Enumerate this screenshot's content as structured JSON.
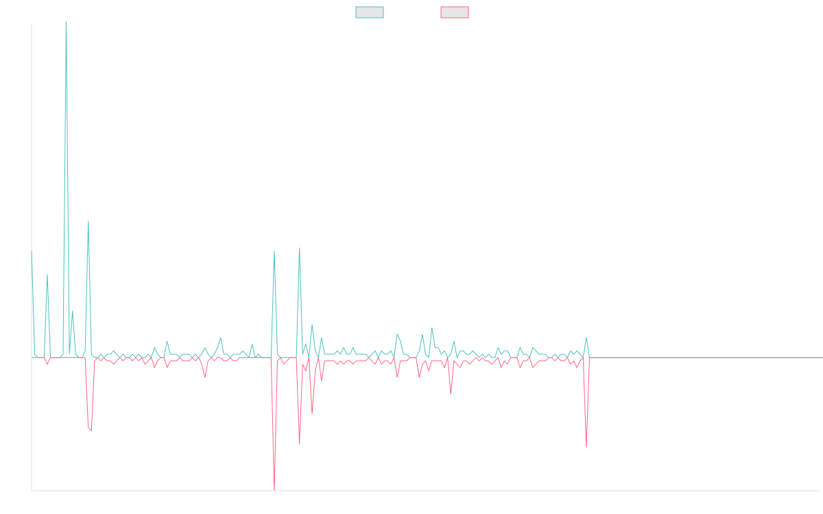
{
  "chart_data": {
    "type": "line",
    "title": "",
    "xlabel": "",
    "ylabel": "",
    "grid": false,
    "legend_position": "top-center",
    "ylim": [
      -200,
      500
    ],
    "xlim": [
      0,
      250
    ],
    "series": [
      {
        "color": "#4bc0c0",
        "fill": "#e6e6e6",
        "values": [
          160,
          5,
          0,
          0,
          0,
          125,
          0,
          0,
          0,
          0,
          5,
          505,
          5,
          70,
          5,
          0,
          0,
          10,
          205,
          5,
          0,
          0,
          5,
          0,
          5,
          5,
          10,
          5,
          0,
          5,
          0,
          0,
          5,
          0,
          5,
          0,
          0,
          5,
          0,
          15,
          5,
          0,
          0,
          25,
          5,
          5,
          5,
          0,
          5,
          5,
          5,
          0,
          5,
          0,
          5,
          15,
          5,
          0,
          5,
          15,
          30,
          5,
          5,
          0,
          5,
          5,
          5,
          10,
          5,
          0,
          20,
          0,
          5,
          0,
          0,
          0,
          0,
          160,
          5,
          0,
          0,
          0,
          0,
          0,
          0,
          165,
          5,
          20,
          0,
          50,
          10,
          0,
          30,
          5,
          5,
          5,
          5,
          10,
          5,
          15,
          5,
          5,
          15,
          5,
          5,
          5,
          5,
          0,
          5,
          10,
          0,
          10,
          5,
          5,
          10,
          0,
          35,
          25,
          5,
          5,
          0,
          0,
          0,
          10,
          35,
          5,
          0,
          45,
          15,
          15,
          5,
          10,
          0,
          5,
          25,
          0,
          10,
          10,
          5,
          5,
          10,
          5,
          0,
          5,
          0,
          5,
          0,
          0,
          15,
          5,
          10,
          10,
          0,
          0,
          0,
          15,
          5,
          5,
          0,
          15,
          10,
          5,
          5,
          5,
          0,
          0,
          5,
          0,
          5,
          5,
          0,
          10,
          5,
          10,
          5,
          0,
          30,
          0,
          0,
          0,
          0,
          0,
          0,
          0,
          0,
          0,
          0,
          0,
          0,
          0,
          0,
          0,
          0,
          0,
          0,
          0,
          0,
          0,
          0,
          0,
          0,
          0,
          0,
          0,
          0,
          0,
          0,
          0,
          0,
          0,
          0,
          0,
          0,
          0,
          0,
          0,
          0,
          0,
          0,
          0,
          0,
          0,
          0,
          0,
          0,
          0,
          0,
          0,
          0,
          0,
          0,
          0,
          0,
          0,
          0,
          0,
          0,
          0,
          0,
          0,
          0,
          0,
          0,
          0,
          0,
          0,
          0,
          0,
          0,
          0,
          0,
          0,
          0,
          0,
          0,
          0,
          0,
          0,
          0,
          0,
          0,
          0,
          0,
          0,
          0,
          0,
          0,
          0,
          0
        ]
      },
      {
        "color": "#ff6384",
        "fill": "#e6e6e6",
        "values": [
          0,
          0,
          0,
          0,
          0,
          -10,
          0,
          0,
          0,
          0,
          0,
          0,
          0,
          0,
          0,
          0,
          0,
          0,
          -105,
          -110,
          -5,
          0,
          -5,
          0,
          -5,
          -5,
          -10,
          -5,
          0,
          -5,
          0,
          0,
          -5,
          0,
          -5,
          0,
          -10,
          -5,
          0,
          -15,
          -5,
          0,
          0,
          -15,
          -5,
          -5,
          -5,
          0,
          -5,
          -5,
          -5,
          0,
          -5,
          0,
          -10,
          -30,
          -5,
          0,
          -5,
          0,
          0,
          -5,
          -5,
          0,
          -5,
          -5,
          0,
          0,
          0,
          0,
          0,
          0,
          0,
          0,
          0,
          0,
          0,
          -200,
          -5,
          0,
          -10,
          -5,
          0,
          0,
          0,
          -130,
          -10,
          -20,
          0,
          -85,
          -20,
          0,
          -35,
          -5,
          -5,
          -5,
          -5,
          -10,
          -5,
          -10,
          -5,
          -5,
          -10,
          -5,
          -5,
          -5,
          -5,
          0,
          -5,
          -10,
          0,
          -10,
          -5,
          -5,
          -10,
          0,
          -30,
          -5,
          -5,
          -5,
          0,
          0,
          0,
          -30,
          -10,
          -5,
          -20,
          -5,
          -5,
          -5,
          -5,
          -15,
          0,
          -55,
          -5,
          -10,
          -15,
          -5,
          -5,
          -10,
          -5,
          0,
          -5,
          0,
          -5,
          -5,
          -10,
          -5,
          0,
          -15,
          -5,
          -10,
          0,
          0,
          0,
          -15,
          -5,
          -5,
          0,
          -15,
          -10,
          -5,
          -5,
          -5,
          0,
          0,
          -5,
          0,
          -5,
          -5,
          0,
          -10,
          -5,
          -15,
          -5,
          0,
          -135,
          0,
          0,
          0,
          0,
          0,
          0,
          0,
          0,
          0,
          0,
          0,
          0,
          0,
          0,
          0,
          0,
          0,
          0,
          0,
          0,
          0,
          0,
          0,
          0,
          0,
          0,
          0,
          0,
          0,
          0,
          0,
          0,
          0,
          0,
          0,
          0,
          0,
          0,
          0,
          0,
          0,
          0,
          0,
          0,
          0,
          0,
          0,
          0,
          0,
          0,
          0,
          0,
          0,
          0,
          0,
          0,
          0,
          0,
          0,
          0,
          0,
          0,
          0,
          0,
          0,
          0,
          0,
          0,
          0,
          0,
          0,
          0,
          0,
          0,
          0,
          0,
          0,
          0,
          0,
          0,
          0,
          0,
          0,
          0,
          0,
          0,
          0,
          0,
          0,
          0,
          0,
          0,
          0,
          0,
          0,
          0
        ]
      }
    ]
  }
}
